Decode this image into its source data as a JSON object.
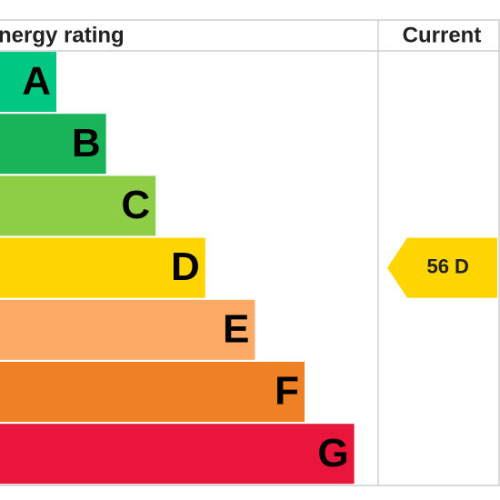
{
  "header": {
    "title": "Energy rating",
    "current": "Current"
  },
  "bands": [
    {
      "letter": "A",
      "color": "#00c781"
    },
    {
      "letter": "B",
      "color": "#19b459"
    },
    {
      "letter": "C",
      "color": "#8dce46"
    },
    {
      "letter": "D",
      "color": "#ffd500"
    },
    {
      "letter": "E",
      "color": "#fcaa65"
    },
    {
      "letter": "F",
      "color": "#ef8023"
    },
    {
      "letter": "G",
      "color": "#e9153b"
    }
  ],
  "current": {
    "score": 56,
    "band": "D",
    "color": "#ffd500"
  }
}
